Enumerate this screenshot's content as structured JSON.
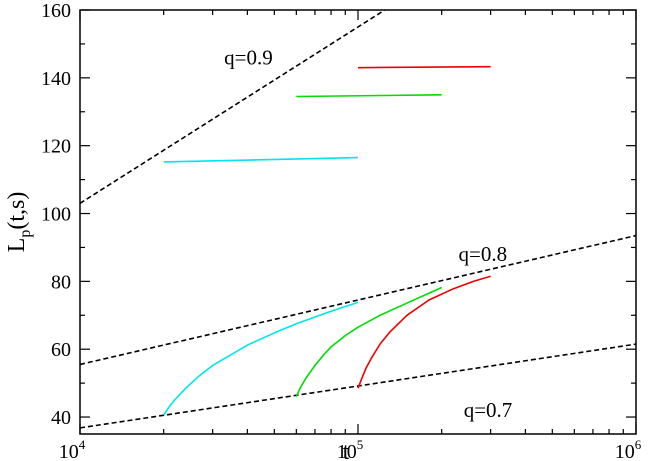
{
  "chart_data": {
    "type": "line",
    "xlabel": "t",
    "ylabel": "L",
    "ylabel_subscript": "p",
    "ylabel_suffix": "(t,s)",
    "xscale": "log",
    "xlim": [
      10000,
      1000000
    ],
    "ylim": [
      35,
      160
    ],
    "x_ticks": [
      {
        "value": 10000,
        "base": "10",
        "exp": "4"
      },
      {
        "value": 100000,
        "base": "10",
        "exp": "5"
      },
      {
        "value": 1000000,
        "base": "10",
        "exp": "6"
      }
    ],
    "y_ticks": [
      40,
      60,
      80,
      100,
      120,
      140,
      160
    ],
    "grid": false,
    "annotations": [
      {
        "text": "q=0.9",
        "x": 33000,
        "y": 144
      },
      {
        "text": "q=0.8",
        "x": 230000,
        "y": 86
      },
      {
        "text": "q=0.7",
        "x": 240000,
        "y": 40
      }
    ],
    "dashed_lines": [
      {
        "q": "0.9",
        "x": [
          10000,
          1000000
        ],
        "y": [
          103,
          207
        ]
      },
      {
        "q": "0.8",
        "x": [
          10000,
          1000000
        ],
        "y": [
          55.5,
          93.5
        ]
      },
      {
        "q": "0.7",
        "x": [
          10000,
          1000000
        ],
        "y": [
          36.8,
          61.5
        ]
      }
    ],
    "series": [
      {
        "color": "#00e5ee",
        "group": "q=0.9",
        "x": [
          20000,
          100000
        ],
        "y": [
          115.2,
          116.5
        ]
      },
      {
        "color": "#00dd00",
        "group": "q=0.9",
        "x": [
          60000,
          200000
        ],
        "y": [
          134.5,
          135
        ]
      },
      {
        "color": "#ee0000",
        "group": "q=0.9",
        "x": [
          100000,
          300000
        ],
        "y": [
          143,
          143.3
        ]
      },
      {
        "color": "#00e5ee",
        "group": "q=0.8",
        "x": [
          20000,
          21000,
          22000,
          24000,
          27000,
          30000,
          40000,
          50000,
          60000,
          70000,
          80000,
          90000,
          100000
        ],
        "y": [
          40.6,
          43.2,
          45.2,
          48.5,
          52.3,
          55.2,
          61.2,
          64.8,
          67.5,
          69.5,
          71.2,
          72.6,
          73.8
        ]
      },
      {
        "color": "#00dd00",
        "group": "q=0.8",
        "x": [
          60000,
          62000,
          65000,
          70000,
          75000,
          80000,
          90000,
          100000,
          120000,
          150000,
          200000
        ],
        "y": [
          46,
          48.6,
          51.5,
          55.2,
          58.2,
          60.7,
          64,
          66.5,
          70,
          73.6,
          78.2
        ]
      },
      {
        "color": "#ee0000",
        "group": "q=0.8",
        "x": [
          100000,
          103000,
          107000,
          112000,
          120000,
          130000,
          150000,
          180000,
          220000,
          260000,
          300000
        ],
        "y": [
          48.5,
          51.2,
          54.5,
          57.5,
          61.5,
          65,
          70,
          74.5,
          77.8,
          80,
          81.5
        ]
      }
    ]
  }
}
